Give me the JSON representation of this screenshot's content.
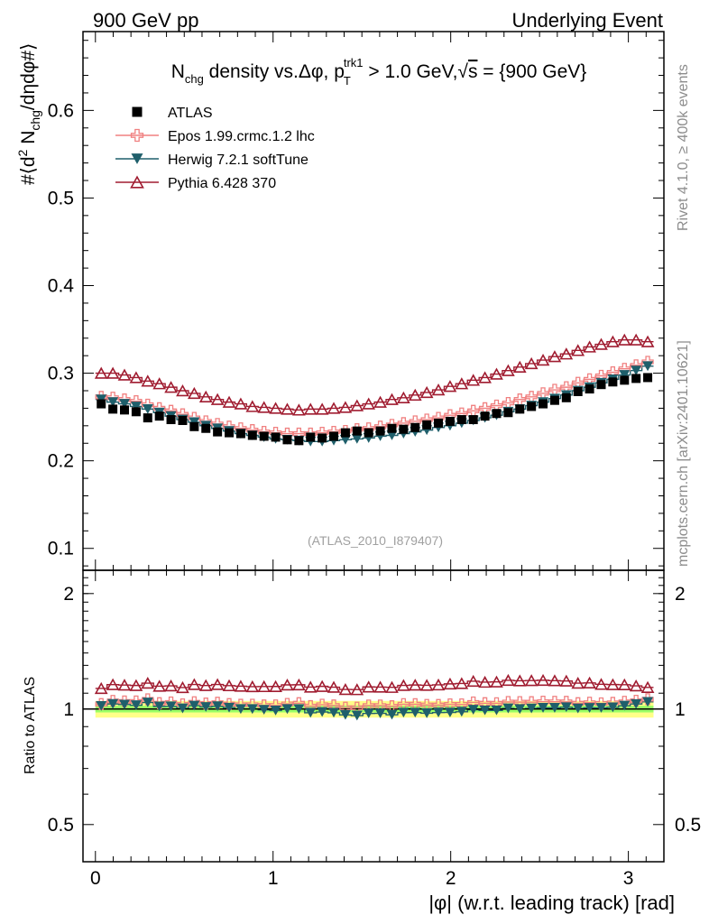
{
  "header": {
    "left": "900 GeV pp",
    "right": "Underlying Event"
  },
  "side_labels": {
    "rivet": "Rivet 4.1.0, ≥ 400k events",
    "mcplots": "mcplots.cern.ch [arXiv:2401.10621]"
  },
  "watermark": "(ATLAS_2010_I879407)",
  "chart_data": {
    "type": "scatter",
    "title": "N_chg density vs. Δφ, p_T^trk1 > 1.0 GeV, √s = {900 GeV}",
    "title_parts": {
      "n": "N",
      "n_sub": "chg",
      "mid": " density vs.Δφ, p",
      "pt_sub": "T",
      "pt_sup": "trk1",
      "tail": " > 1.0 GeV,",
      "sqrt": "√",
      "s": "s",
      "end": " = {900 GeV}"
    },
    "xlabel": "|φ| (w.r.t. leading track) [rad]",
    "ylabel": "#⟨d² N_chg/dηdφ#⟩",
    "ylabel_parts": {
      "a": "#⟨d",
      "sup": "2",
      "b": " N",
      "sub": "chg",
      "c": "/dηdφ#⟩"
    },
    "ratio_ylabel": "Ratio to ATLAS",
    "xlim": [
      -0.07,
      3.2
    ],
    "ylim": [
      0.075,
      0.69
    ],
    "ratio_ylim": [
      0.4,
      2.3
    ],
    "x_ticks": [
      "0",
      "1",
      "2",
      "3"
    ],
    "y_ticks": [
      "0.1",
      "0.2",
      "0.3",
      "0.4",
      "0.5",
      "0.6"
    ],
    "ratio_ticks": [
      "0.5",
      "1",
      "2"
    ],
    "x": [
      0.0327,
      0.0982,
      0.1636,
      0.2291,
      0.2945,
      0.36,
      0.4254,
      0.4909,
      0.5563,
      0.6218,
      0.6872,
      0.7527,
      0.8181,
      0.8836,
      0.949,
      1.0145,
      1.0799,
      1.1454,
      1.2108,
      1.2763,
      1.3417,
      1.4072,
      1.4726,
      1.5381,
      1.6035,
      1.669,
      1.7344,
      1.7999,
      1.8653,
      1.9308,
      1.9962,
      2.0617,
      2.1271,
      2.1926,
      2.258,
      2.3235,
      2.3889,
      2.4544,
      2.5198,
      2.5853,
      2.6507,
      2.7162,
      2.7816,
      2.8471,
      2.9125,
      2.978,
      3.0434,
      3.1089
    ],
    "series": [
      {
        "name": "ATLAS",
        "color": "#000000",
        "marker": "square",
        "values": [
          0.265,
          0.259,
          0.258,
          0.256,
          0.249,
          0.251,
          0.247,
          0.246,
          0.239,
          0.237,
          0.233,
          0.232,
          0.231,
          0.229,
          0.228,
          0.227,
          0.224,
          0.223,
          0.227,
          0.226,
          0.228,
          0.232,
          0.234,
          0.232,
          0.234,
          0.237,
          0.236,
          0.238,
          0.241,
          0.243,
          0.245,
          0.247,
          0.247,
          0.251,
          0.254,
          0.255,
          0.259,
          0.262,
          0.265,
          0.269,
          0.272,
          0.279,
          0.282,
          0.287,
          0.29,
          0.292,
          0.294,
          0.295
        ]
      },
      {
        "name": "Epos 1.99.crmc.1.2 lhc",
        "color": "#f08080",
        "marker": "cross",
        "values": [
          0.273,
          0.272,
          0.27,
          0.268,
          0.264,
          0.26,
          0.257,
          0.253,
          0.249,
          0.245,
          0.242,
          0.239,
          0.237,
          0.235,
          0.233,
          0.232,
          0.231,
          0.231,
          0.231,
          0.232,
          0.233,
          0.234,
          0.236,
          0.237,
          0.239,
          0.241,
          0.243,
          0.245,
          0.247,
          0.249,
          0.252,
          0.254,
          0.257,
          0.26,
          0.263,
          0.266,
          0.27,
          0.273,
          0.277,
          0.281,
          0.284,
          0.289,
          0.293,
          0.297,
          0.301,
          0.305,
          0.309,
          0.313
        ]
      },
      {
        "name": "Herwig 7.2.1 softTune",
        "color": "#1f5f6b",
        "marker": "triangle-down",
        "values": [
          0.27,
          0.267,
          0.265,
          0.262,
          0.259,
          0.255,
          0.251,
          0.247,
          0.244,
          0.24,
          0.237,
          0.234,
          0.231,
          0.229,
          0.227,
          0.225,
          0.224,
          0.223,
          0.222,
          0.222,
          0.223,
          0.224,
          0.225,
          0.226,
          0.228,
          0.229,
          0.231,
          0.233,
          0.235,
          0.238,
          0.24,
          0.243,
          0.246,
          0.249,
          0.252,
          0.256,
          0.259,
          0.263,
          0.267,
          0.271,
          0.275,
          0.28,
          0.284,
          0.289,
          0.293,
          0.298,
          0.303,
          0.308
        ]
      },
      {
        "name": "Pythia 6.428 370",
        "color": "#a01c30",
        "marker": "triangle-up",
        "values": [
          0.3,
          0.3,
          0.298,
          0.295,
          0.291,
          0.288,
          0.284,
          0.28,
          0.277,
          0.273,
          0.27,
          0.267,
          0.265,
          0.262,
          0.261,
          0.26,
          0.259,
          0.258,
          0.259,
          0.259,
          0.26,
          0.261,
          0.263,
          0.265,
          0.267,
          0.27,
          0.272,
          0.275,
          0.278,
          0.281,
          0.285,
          0.288,
          0.292,
          0.295,
          0.299,
          0.303,
          0.307,
          0.311,
          0.315,
          0.319,
          0.322,
          0.326,
          0.33,
          0.333,
          0.336,
          0.338,
          0.338,
          0.336
        ]
      }
    ],
    "ratio_band": {
      "inner": [
        0.98,
        1.02
      ],
      "outer": [
        0.95,
        1.05
      ],
      "inner_color": "#99ff66",
      "outer_color": "#ffff88"
    }
  }
}
